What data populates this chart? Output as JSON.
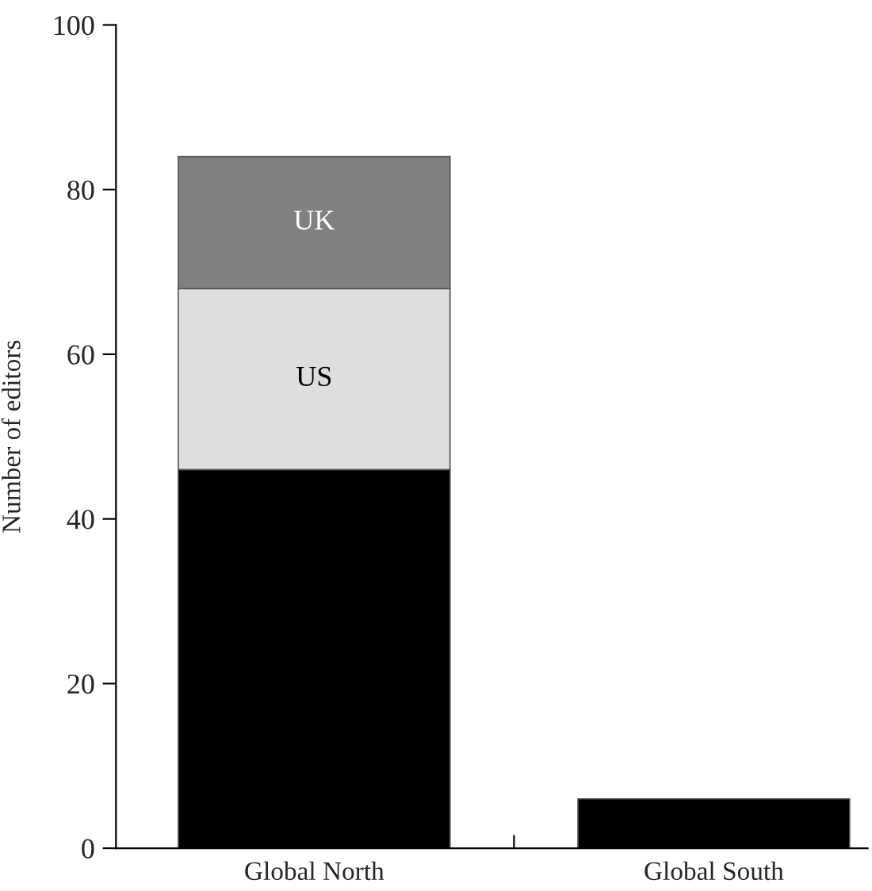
{
  "chart_data": {
    "type": "bar",
    "stacked": true,
    "ylabel": "Number of editors",
    "categories": [
      "Global North",
      "Global South"
    ],
    "series": [
      {
        "color": "#000000",
        "values": [
          46,
          6
        ]
      },
      {
        "name": "US",
        "color": "#dedede",
        "values": [
          22,
          null
        ]
      },
      {
        "name": "UK",
        "color": "#808080",
        "values": [
          16,
          null
        ]
      }
    ],
    "ylim": [
      0,
      100
    ],
    "yticks": [
      0,
      20,
      40,
      60,
      80,
      100
    ],
    "grid": false,
    "legend": false
  }
}
